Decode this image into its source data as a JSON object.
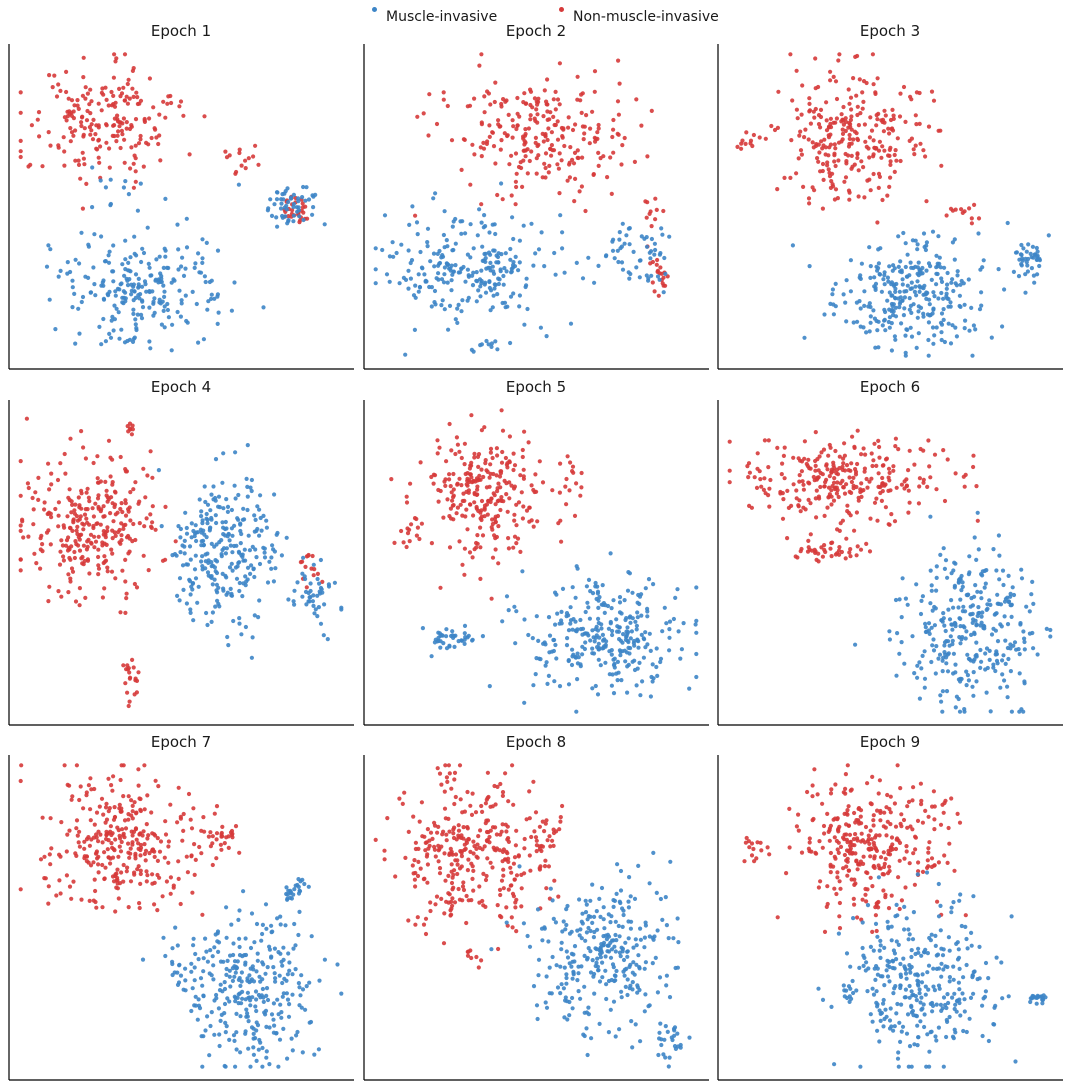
{
  "legend": {
    "items": [
      {
        "label": "Muscle-invasive",
        "color": "#3d85c6"
      },
      {
        "label": "Non-muscle-invasive",
        "color": "#d63a3a"
      }
    ]
  },
  "chart_data": [
    {
      "type": "scatter",
      "title": "Epoch 1",
      "xlabel": "",
      "ylabel": "",
      "legend": [
        "Muscle-invasive",
        "Non-muscle-invasive"
      ],
      "series": [
        {
          "name": "Non-muscle-invasive",
          "color": "#d63a3a",
          "clusters": [
            {
              "cx": 0.27,
              "cy": 0.24,
              "rx": 0.23,
              "ry": 0.18,
              "n": 200
            },
            {
              "cx": 0.84,
              "cy": 0.52,
              "rx": 0.05,
              "ry": 0.05,
              "n": 30
            },
            {
              "cx": 0.69,
              "cy": 0.36,
              "rx": 0.05,
              "ry": 0.06,
              "n": 14
            },
            {
              "cx": 0.46,
              "cy": 0.17,
              "rx": 0.02,
              "ry": 0.02,
              "n": 5
            }
          ]
        },
        {
          "name": "Muscle-invasive",
          "color": "#3d85c6",
          "clusters": [
            {
              "cx": 0.38,
              "cy": 0.77,
              "rx": 0.23,
              "ry": 0.17,
              "n": 240
            },
            {
              "cx": 0.82,
              "cy": 0.5,
              "rx": 0.09,
              "ry": 0.07,
              "n": 55
            },
            {
              "cx": 0.3,
              "cy": 0.45,
              "rx": 0.12,
              "ry": 0.08,
              "n": 12
            }
          ]
        }
      ]
    },
    {
      "type": "scatter",
      "title": "Epoch 2",
      "xlabel": "",
      "ylabel": "",
      "legend": [
        "Muscle-invasive",
        "Non-muscle-invasive"
      ],
      "series": [
        {
          "name": "Non-muscle-invasive",
          "color": "#d63a3a",
          "clusters": [
            {
              "cx": 0.5,
              "cy": 0.27,
              "rx": 0.26,
              "ry": 0.2,
              "n": 250
            },
            {
              "cx": 0.87,
              "cy": 0.72,
              "rx": 0.05,
              "ry": 0.07,
              "n": 20
            },
            {
              "cx": 0.85,
              "cy": 0.52,
              "rx": 0.04,
              "ry": 0.05,
              "n": 10
            }
          ]
        },
        {
          "name": "Muscle-invasive",
          "color": "#3d85c6",
          "clusters": [
            {
              "cx": 0.3,
              "cy": 0.7,
              "rx": 0.26,
              "ry": 0.17,
              "n": 250
            },
            {
              "cx": 0.8,
              "cy": 0.66,
              "rx": 0.12,
              "ry": 0.1,
              "n": 55
            },
            {
              "cx": 0.35,
              "cy": 0.95,
              "rx": 0.07,
              "ry": 0.02,
              "n": 10
            }
          ]
        }
      ]
    },
    {
      "type": "scatter",
      "title": "Epoch 3",
      "xlabel": "",
      "ylabel": "",
      "legend": [
        "Muscle-invasive",
        "Non-muscle-invasive"
      ],
      "series": [
        {
          "name": "Non-muscle-invasive",
          "color": "#d63a3a",
          "clusters": [
            {
              "cx": 0.38,
              "cy": 0.28,
              "rx": 0.22,
              "ry": 0.22,
              "n": 270
            },
            {
              "cx": 0.72,
              "cy": 0.52,
              "rx": 0.06,
              "ry": 0.03,
              "n": 12
            },
            {
              "cx": 0.07,
              "cy": 0.3,
              "rx": 0.04,
              "ry": 0.04,
              "n": 10
            },
            {
              "cx": 0.56,
              "cy": 0.29,
              "rx": 0.03,
              "ry": 0.03,
              "n": 5
            }
          ]
        },
        {
          "name": "Muscle-invasive",
          "color": "#3d85c6",
          "clusters": [
            {
              "cx": 0.57,
              "cy": 0.77,
              "rx": 0.24,
              "ry": 0.18,
              "n": 300
            },
            {
              "cx": 0.92,
              "cy": 0.67,
              "rx": 0.05,
              "ry": 0.06,
              "n": 40
            }
          ]
        }
      ]
    },
    {
      "type": "scatter",
      "title": "Epoch 4",
      "xlabel": "",
      "ylabel": "",
      "legend": [
        "Muscle-invasive",
        "Non-muscle-invasive"
      ],
      "series": [
        {
          "name": "Non-muscle-invasive",
          "color": "#d63a3a",
          "clusters": [
            {
              "cx": 0.24,
              "cy": 0.4,
              "rx": 0.2,
              "ry": 0.22,
              "n": 300
            },
            {
              "cx": 0.35,
              "cy": 0.08,
              "rx": 0.02,
              "ry": 0.03,
              "n": 8
            },
            {
              "cx": 0.35,
              "cy": 0.88,
              "rx": 0.025,
              "ry": 0.07,
              "n": 20
            },
            {
              "cx": 0.88,
              "cy": 0.52,
              "rx": 0.04,
              "ry": 0.05,
              "n": 14
            }
          ]
        },
        {
          "name": "Muscle-invasive",
          "color": "#3d85c6",
          "clusters": [
            {
              "cx": 0.63,
              "cy": 0.47,
              "rx": 0.17,
              "ry": 0.24,
              "n": 280
            },
            {
              "cx": 0.9,
              "cy": 0.62,
              "rx": 0.06,
              "ry": 0.12,
              "n": 40
            }
          ]
        }
      ]
    },
    {
      "type": "scatter",
      "title": "Epoch 5",
      "xlabel": "",
      "ylabel": "",
      "legend": [
        "Muscle-invasive",
        "Non-muscle-invasive"
      ],
      "series": [
        {
          "name": "Non-muscle-invasive",
          "color": "#d63a3a",
          "clusters": [
            {
              "cx": 0.35,
              "cy": 0.28,
              "rx": 0.19,
              "ry": 0.2,
              "n": 260
            },
            {
              "cx": 0.6,
              "cy": 0.23,
              "rx": 0.04,
              "ry": 0.1,
              "n": 18
            },
            {
              "cx": 0.12,
              "cy": 0.4,
              "rx": 0.04,
              "ry": 0.08,
              "n": 12
            }
          ]
        },
        {
          "name": "Muscle-invasive",
          "color": "#3d85c6",
          "clusters": [
            {
              "cx": 0.7,
              "cy": 0.74,
              "rx": 0.24,
              "ry": 0.18,
              "n": 300
            },
            {
              "cx": 0.25,
              "cy": 0.75,
              "rx": 0.07,
              "ry": 0.04,
              "n": 40
            }
          ]
        }
      ]
    },
    {
      "type": "scatter",
      "title": "Epoch 6",
      "xlabel": "",
      "ylabel": "",
      "legend": [
        "Muscle-invasive",
        "Non-muscle-invasive"
      ],
      "series": [
        {
          "name": "Non-muscle-invasive",
          "color": "#d63a3a",
          "clusters": [
            {
              "cx": 0.35,
              "cy": 0.24,
              "rx": 0.28,
              "ry": 0.13,
              "n": 280
            },
            {
              "cx": 0.3,
              "cy": 0.47,
              "rx": 0.13,
              "ry": 0.04,
              "n": 40
            }
          ]
        },
        {
          "name": "Muscle-invasive",
          "color": "#3d85c6",
          "clusters": [
            {
              "cx": 0.74,
              "cy": 0.72,
              "rx": 0.21,
              "ry": 0.24,
              "n": 320
            }
          ]
        }
      ]
    },
    {
      "type": "scatter",
      "title": "Epoch 7",
      "xlabel": "",
      "ylabel": "",
      "legend": [
        "Muscle-invasive",
        "Non-muscle-invasive"
      ],
      "series": [
        {
          "name": "Non-muscle-invasive",
          "color": "#d63a3a",
          "clusters": [
            {
              "cx": 0.3,
              "cy": 0.27,
              "rx": 0.22,
              "ry": 0.22,
              "n": 300
            },
            {
              "cx": 0.6,
              "cy": 0.25,
              "rx": 0.1,
              "ry": 0.08,
              "n": 40
            }
          ]
        },
        {
          "name": "Muscle-invasive",
          "color": "#3d85c6",
          "clusters": [
            {
              "cx": 0.7,
              "cy": 0.73,
              "rx": 0.21,
              "ry": 0.24,
              "n": 300
            },
            {
              "cx": 0.84,
              "cy": 0.42,
              "rx": 0.04,
              "ry": 0.05,
              "n": 25
            },
            {
              "cx": 0.49,
              "cy": 0.68,
              "rx": 0.04,
              "ry": 0.06,
              "n": 15
            }
          ]
        }
      ]
    },
    {
      "type": "scatter",
      "title": "Epoch 8",
      "xlabel": "",
      "ylabel": "",
      "legend": [
        "Muscle-invasive",
        "Non-muscle-invasive"
      ],
      "series": [
        {
          "name": "Non-muscle-invasive",
          "color": "#d63a3a",
          "clusters": [
            {
              "cx": 0.3,
              "cy": 0.29,
              "rx": 0.22,
              "ry": 0.24,
              "n": 320
            },
            {
              "cx": 0.53,
              "cy": 0.26,
              "rx": 0.05,
              "ry": 0.1,
              "n": 25
            },
            {
              "cx": 0.3,
              "cy": 0.62,
              "rx": 0.03,
              "ry": 0.03,
              "n": 8
            }
          ]
        },
        {
          "name": "Muscle-invasive",
          "color": "#3d85c6",
          "clusters": [
            {
              "cx": 0.7,
              "cy": 0.63,
              "rx": 0.2,
              "ry": 0.25,
              "n": 300
            },
            {
              "cx": 0.9,
              "cy": 0.9,
              "rx": 0.04,
              "ry": 0.07,
              "n": 25
            }
          ]
        }
      ]
    },
    {
      "type": "scatter",
      "title": "Epoch 9",
      "xlabel": "",
      "ylabel": "",
      "legend": [
        "Muscle-invasive",
        "Non-muscle-invasive"
      ],
      "series": [
        {
          "name": "Non-muscle-invasive",
          "color": "#d63a3a",
          "clusters": [
            {
              "cx": 0.44,
              "cy": 0.27,
              "rx": 0.2,
              "ry": 0.22,
              "n": 300
            },
            {
              "cx": 0.1,
              "cy": 0.29,
              "rx": 0.05,
              "ry": 0.05,
              "n": 15
            },
            {
              "cx": 0.64,
              "cy": 0.18,
              "rx": 0.07,
              "ry": 0.06,
              "n": 15
            },
            {
              "cx": 0.62,
              "cy": 0.32,
              "rx": 0.04,
              "ry": 0.04,
              "n": 10
            }
          ]
        },
        {
          "name": "Muscle-invasive",
          "color": "#3d85c6",
          "clusters": [
            {
              "cx": 0.6,
              "cy": 0.71,
              "rx": 0.24,
              "ry": 0.25,
              "n": 320
            },
            {
              "cx": 0.94,
              "cy": 0.76,
              "rx": 0.03,
              "ry": 0.02,
              "n": 20
            },
            {
              "cx": 0.38,
              "cy": 0.75,
              "rx": 0.03,
              "ry": 0.03,
              "n": 10
            }
          ]
        }
      ]
    }
  ]
}
